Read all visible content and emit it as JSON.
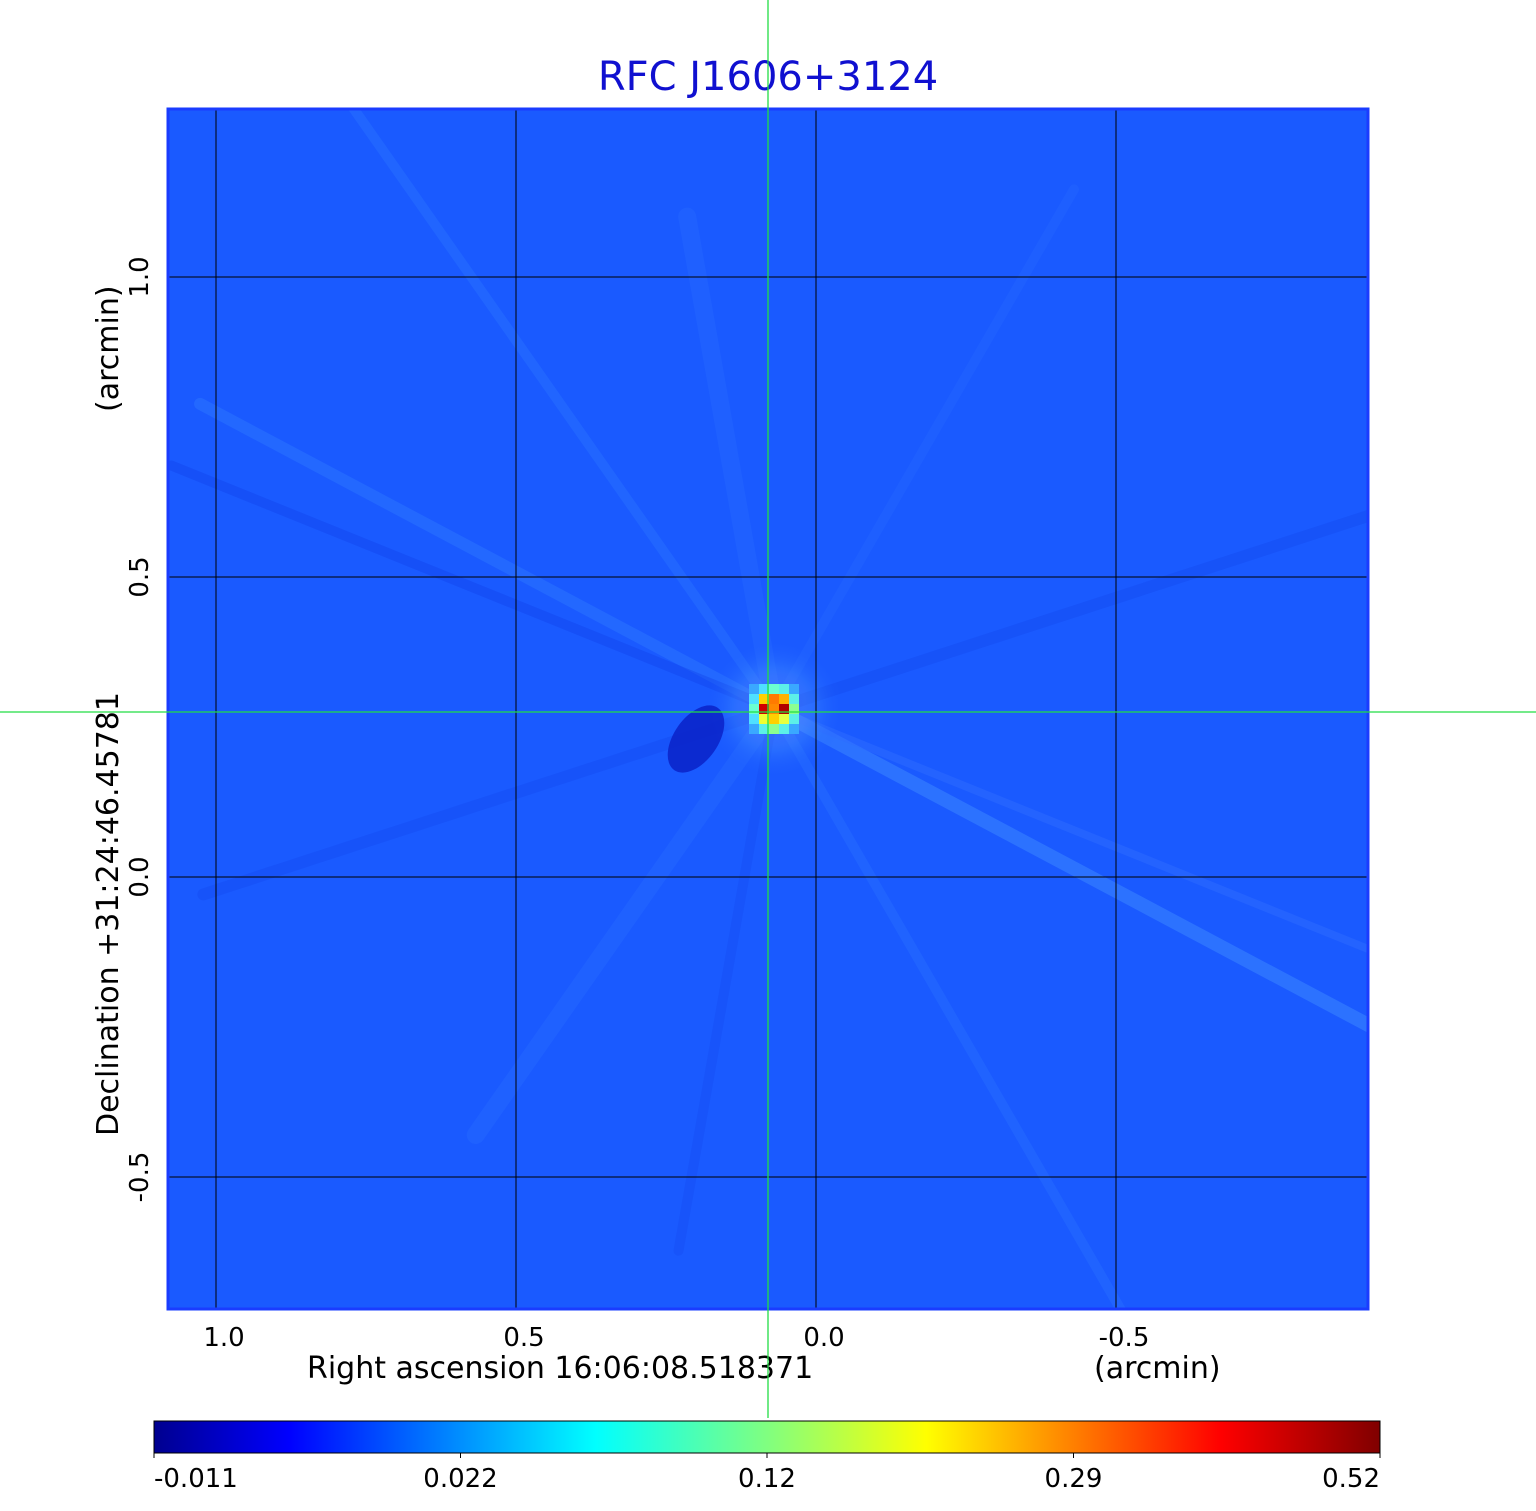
{
  "chart_data": {
    "type": "heatmap",
    "title": "RFC J1606+3124",
    "xlabel": "Right ascension  16:06:08.518371",
    "xunit": "(arcmin)",
    "ylabel": "Declination  +31:24:46.45781",
    "yunit": "(arcmin)",
    "xlim": [
      1.08,
      -0.92
    ],
    "ylim": [
      -0.72,
      1.28
    ],
    "x_ticks": [
      1.0,
      0.5,
      0.0,
      -0.5
    ],
    "x_tick_labels": [
      "1.0",
      "0.5",
      "0.0",
      "-0.5"
    ],
    "y_ticks": [
      -0.5,
      0.0,
      0.5,
      1.0
    ],
    "y_tick_labels": [
      "-0.5",
      "0.0",
      "0.5",
      "1.0"
    ],
    "grid": true,
    "crosshair": {
      "x": 0.08,
      "y": 0.275,
      "color": "#22dd44"
    },
    "source_peak": {
      "x": 0.07,
      "y": 0.28,
      "value": 0.52
    },
    "negative_lobe": {
      "x": 0.2,
      "y": 0.23,
      "value": -0.011
    },
    "colorbar": {
      "tick_labels": [
        "-0.011",
        "0.022",
        "0.12",
        "0.29",
        "0.52"
      ],
      "colormap": "jet"
    },
    "colors": {
      "title": "#1010d0",
      "background_field": "#1a5aff",
      "frame": "#1a3cff"
    }
  }
}
